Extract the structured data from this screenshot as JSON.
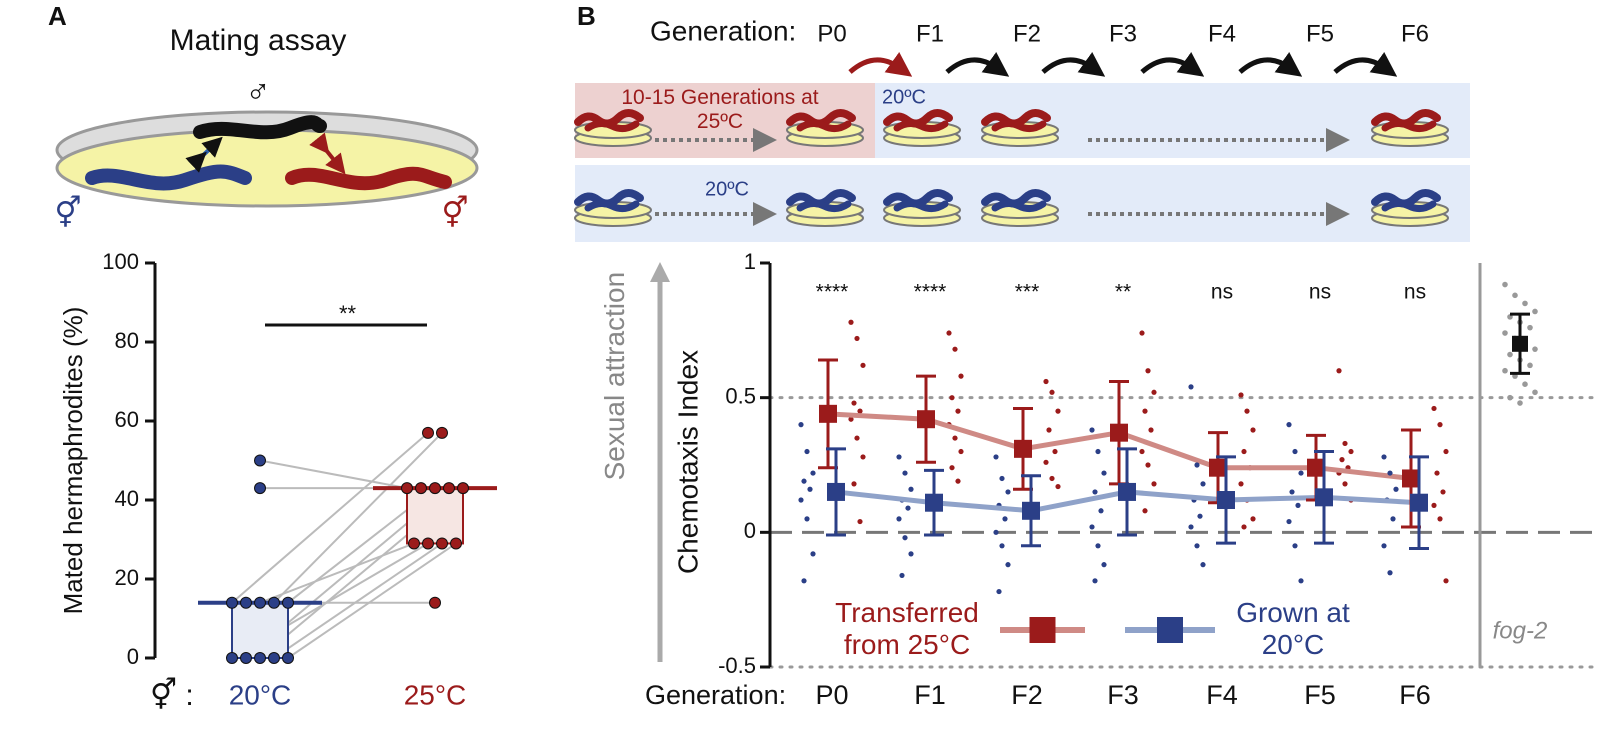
{
  "diagram_a": {
    "label": "A",
    "title": "Mating assay",
    "male_symbol": "♂",
    "hermaphrodite_symbols": [
      "⚥",
      "⚥"
    ]
  },
  "diagram_b": {
    "label": "B",
    "generation_label": "Generation:",
    "generations": [
      "P0",
      "F1",
      "F2",
      "F3",
      "F4",
      "F5",
      "F6"
    ],
    "warm_box_label": "10-15 Generations at 25ºC",
    "cool_label_top": "20ºC",
    "cool_label_bottom": "20ºC"
  },
  "chart_data": [
    {
      "type": "paired_dot",
      "categories": [
        "20°C",
        "25°C"
      ],
      "category_prefix": "⚥ :",
      "ylabel": "Mated hermaphrodites (%)",
      "ylim": [
        0,
        100
      ],
      "yticks": [
        0,
        20,
        40,
        60,
        80,
        100
      ],
      "colors": [
        "#2b3f87",
        "#9b1b1b"
      ],
      "box_fills": [
        "#e8ecf5",
        "#f6e6e3"
      ],
      "values": [
        [
          50,
          43,
          14,
          14,
          14,
          14,
          14,
          0,
          0,
          0,
          0,
          0
        ],
        [
          43,
          43,
          57,
          14,
          29,
          57,
          43,
          29,
          43,
          43,
          29,
          29
        ]
      ],
      "medians": [
        14,
        43
      ],
      "quartiles": [
        [
          0,
          14
        ],
        [
          29,
          43
        ]
      ],
      "significance": "**"
    },
    {
      "type": "line_error",
      "categories": [
        "P0",
        "F1",
        "F2",
        "F3",
        "F4",
        "F5",
        "F6"
      ],
      "xlabel": "Generation:",
      "ylabel": "Chemotaxis Index",
      "annotation": "Sexual attraction",
      "ylim": [
        -0.5,
        1
      ],
      "yticks": [
        -0.5,
        0,
        0.5,
        1
      ],
      "dotted_lines": [
        -0.5,
        0.5
      ],
      "dashed_line": 0,
      "significance": [
        "****",
        "****",
        "***",
        "**",
        "ns",
        "ns",
        "ns"
      ],
      "series": [
        {
          "name": "Transferred from 25°C",
          "color": "#9b1b1b",
          "line_color": "#cf8a85",
          "values": [
            0.44,
            0.42,
            0.31,
            0.37,
            0.24,
            0.24,
            0.2
          ],
          "errors": [
            0.2,
            0.16,
            0.15,
            0.19,
            0.13,
            0.12,
            0.18
          ],
          "points": [
            [
              0.78,
              0.72,
              0.62,
              0.48,
              0.45,
              0.42,
              0.35,
              0.28,
              0.18,
              0.04
            ],
            [
              0.74,
              0.68,
              0.58,
              0.5,
              0.45,
              0.4,
              0.35,
              0.3,
              0.24,
              0.19
            ],
            [
              0.56,
              0.52,
              0.45,
              0.38,
              0.3,
              0.26,
              0.2,
              0.17
            ],
            [
              0.74,
              0.6,
              0.52,
              0.45,
              0.38,
              0.3,
              0.25,
              0.18,
              0.08
            ],
            [
              0.51,
              0.45,
              0.38,
              0.3,
              0.24,
              0.18,
              0.12,
              0.05,
              0.02
            ],
            [
              0.6,
              0.33,
              0.3,
              0.27,
              0.24,
              0.22,
              0.18,
              0.12
            ],
            [
              0.46,
              0.4,
              0.3,
              0.22,
              0.15,
              0.1,
              0.05,
              -0.18
            ]
          ]
        },
        {
          "name": "Grown at 20°C",
          "color": "#2b3f87",
          "line_color": "#8fa2c9",
          "values": [
            0.15,
            0.11,
            0.08,
            0.15,
            0.12,
            0.13,
            0.11
          ],
          "errors": [
            0.16,
            0.12,
            0.13,
            0.16,
            0.16,
            0.17,
            0.17
          ],
          "points": [
            [
              0.4,
              0.3,
              0.22,
              0.19,
              0.16,
              0.12,
              0.05,
              -0.08,
              -0.18
            ],
            [
              0.28,
              0.22,
              0.16,
              0.12,
              0.09,
              0.05,
              -0.02,
              -0.08,
              -0.16
            ],
            [
              0.28,
              0.2,
              0.15,
              0.1,
              0.05,
              0.0,
              -0.05,
              -0.12,
              -0.22
            ],
            [
              0.38,
              0.3,
              0.22,
              0.15,
              0.08,
              0.02,
              -0.05,
              -0.12,
              -0.18
            ],
            [
              0.54,
              0.25,
              0.18,
              0.12,
              0.06,
              0.02,
              -0.05,
              -0.12
            ],
            [
              0.4,
              0.3,
              0.22,
              0.15,
              0.1,
              0.04,
              -0.05,
              -0.18
            ],
            [
              0.28,
              0.22,
              0.16,
              0.12,
              0.05,
              -0.05,
              -0.15
            ]
          ]
        }
      ],
      "reference": {
        "label": "fog-2",
        "value": 0.7,
        "error": 0.11,
        "color": "#111111",
        "points": [
          0.92,
          0.88,
          0.85,
          0.82,
          0.8,
          0.78,
          0.76,
          0.74,
          0.72,
          0.7,
          0.68,
          0.66,
          0.64,
          0.62,
          0.6,
          0.58,
          0.55,
          0.52,
          0.5,
          0.48
        ]
      }
    }
  ]
}
